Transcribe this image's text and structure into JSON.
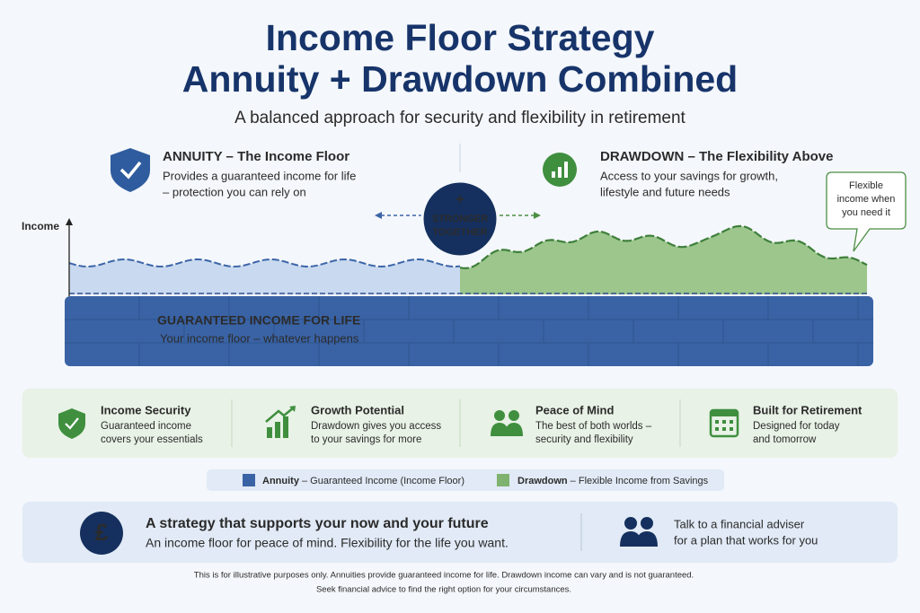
{
  "header": {
    "title_lines": [
      "Income Floor Strategy",
      "Annuity + Drawdown Combined"
    ],
    "subtitle": "A balanced approach for security and flexibility in retirement"
  },
  "annuity": {
    "heading": "ANNUITY – The Income Floor",
    "lines": [
      "Provides a guaranteed income for life",
      "– protection you can rely on"
    ]
  },
  "drawdown": {
    "heading": "DRAWDOWN – The Flexibility Above",
    "lines": [
      "Access to your savings for growth,",
      "lifestyle and future needs"
    ]
  },
  "badge": {
    "symbol": "+",
    "lines": [
      "STRONGER",
      "TOGETHER"
    ]
  },
  "callout": {
    "lines": [
      "Flexible",
      "income when",
      "you need it"
    ]
  },
  "chart": {
    "axis_label": "Income"
  },
  "floor": {
    "title": "GUARANTEED INCOME FOR LIFE",
    "subtitle": "Your income floor – whatever happens"
  },
  "features": [
    {
      "title": "Income Security",
      "lines": [
        "Guaranteed income",
        "covers your essentials"
      ]
    },
    {
      "title": "Growth Potential",
      "lines": [
        "Drawdown gives you access",
        "to your savings for more"
      ]
    },
    {
      "title": "Peace of Mind",
      "lines": [
        "The best of both worlds –",
        "security and flexibility"
      ]
    },
    {
      "title": "Built for Retirement",
      "lines": [
        "Designed for today",
        "and tomorrow"
      ]
    }
  ],
  "legend": [
    {
      "name": "Annuity",
      "description": " – Guaranteed Income (Income Floor)"
    },
    {
      "name": "Drawdown",
      "description": " – Flexible Income from Savings"
    }
  ],
  "banner": {
    "symbol": "£",
    "title": "A strategy that supports your now and your future",
    "text": "An income floor for peace of mind. Flexibility for the life you want.",
    "adviser_lines": [
      "Talk to a financial adviser",
      "for a plan that works for you"
    ]
  },
  "footer": {
    "lines": [
      "This is for illustrative purposes only. Annuities provide guaranteed income for life. Drawdown income can vary and is not guaranteed.",
      "Seek financial advice to find the right option for your circumstances."
    ]
  }
}
